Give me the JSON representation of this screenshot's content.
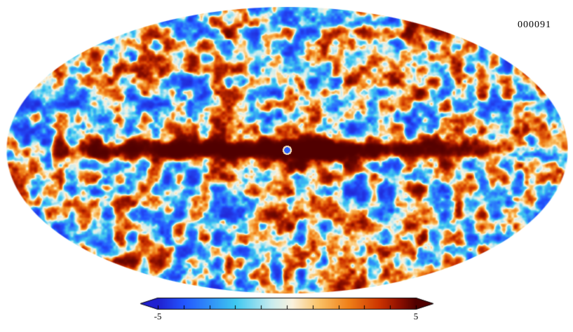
{
  "chart_data": {
    "type": "heatmap",
    "projection": "mollweide",
    "description": "Full-sky CMB-like temperature fluctuation map in Mollweide projection with a dark red galactic plane band along the equator and a small blue spot at the map center",
    "frame_label": "000091",
    "value_range": [
      -5,
      5
    ],
    "colorbar": {
      "min_label": "-5",
      "max_label": "5",
      "tick_count": 11,
      "arrow_ends": true
    },
    "colormap": {
      "name": "planck-parchment",
      "stops": [
        {
          "t": 0.0,
          "color": "#2020d0"
        },
        {
          "t": 0.1,
          "color": "#2356ff"
        },
        {
          "t": 0.3,
          "color": "#3ec8f0"
        },
        {
          "t": 0.44,
          "color": "#c9ecef"
        },
        {
          "t": 0.52,
          "color": "#faf2de"
        },
        {
          "t": 0.62,
          "color": "#fac46a"
        },
        {
          "t": 0.74,
          "color": "#f08018"
        },
        {
          "t": 0.86,
          "color": "#cc3300"
        },
        {
          "t": 0.94,
          "color": "#8c0f00"
        },
        {
          "t": 1.0,
          "color": "#500000"
        }
      ]
    },
    "features": {
      "galactic_plane": "dark red horizontal band across the equator, strongest near center, patchy toward edges",
      "center_spot": "small blue dot at exact map center",
      "background": "turbulent blue/cyan/cream/orange/red fluctuations over the whole ellipse"
    }
  }
}
